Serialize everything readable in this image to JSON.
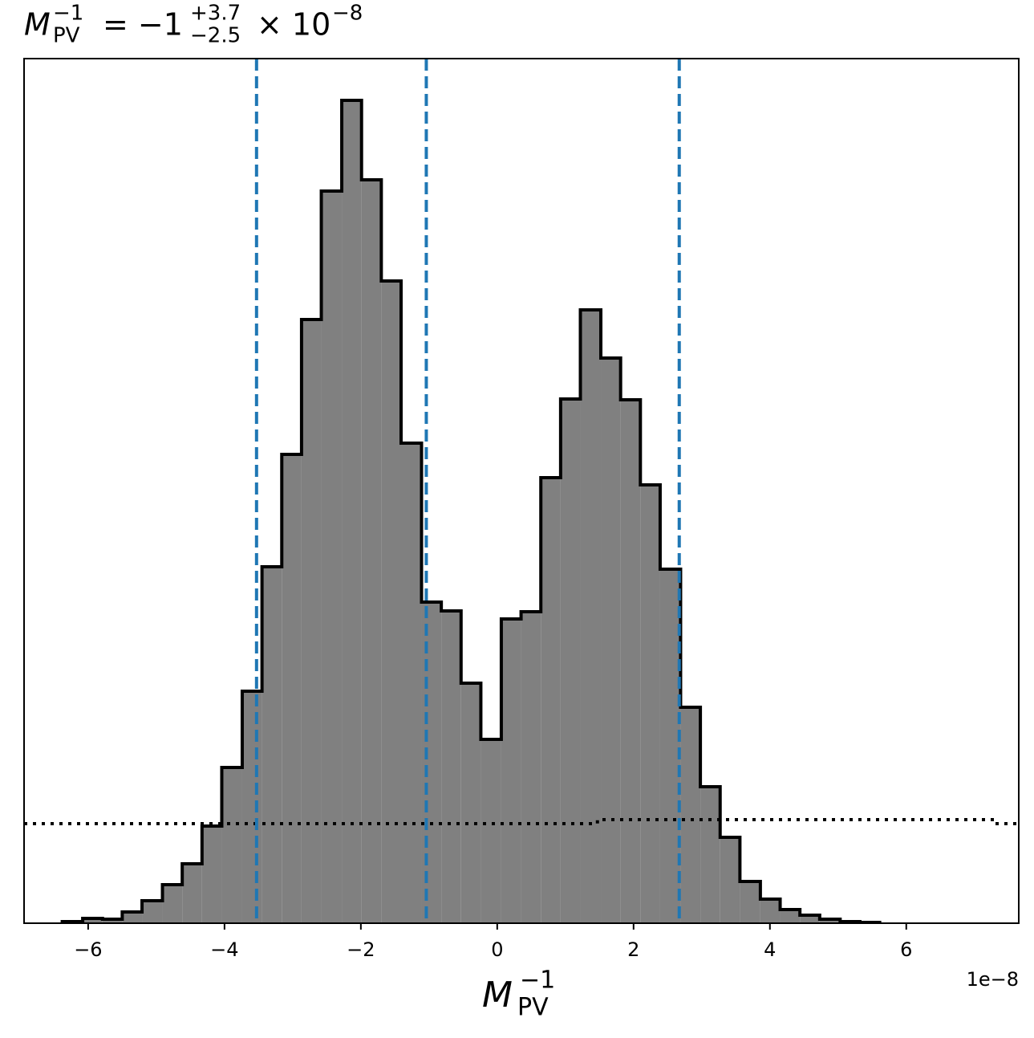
{
  "chart_data": {
    "type": "histogram",
    "title": {
      "base": "M",
      "sup": "−1",
      "sub": "PV",
      "eq": "= −1",
      "upper": "+3.7",
      "lower": "−2.5",
      "tail": "× 10",
      "tail_sup": "−8"
    },
    "xlabel": {
      "base": "M",
      "sup": "−1",
      "sub": "PV"
    },
    "x_offset_label": "1e−8",
    "bins": [
      -6.38,
      -6.08,
      -5.79,
      -5.5,
      -5.21,
      -4.91,
      -4.62,
      -4.33,
      -4.04,
      -3.74,
      -3.45,
      -3.16,
      -2.87,
      -2.58,
      -2.28,
      -1.99,
      -1.7,
      -1.41,
      -1.11,
      -0.82,
      -0.53,
      -0.24,
      0.06,
      0.35,
      0.64,
      0.93,
      1.22,
      1.52,
      1.81,
      2.1,
      2.39,
      2.69,
      2.98,
      3.27,
      3.56,
      3.86,
      4.15,
      4.44,
      4.73,
      5.03,
      5.32,
      5.61
    ],
    "values": [
      2,
      6,
      5,
      14,
      28,
      48,
      74,
      121,
      194,
      289,
      444,
      584,
      752,
      912,
      1025,
      926,
      800,
      598,
      400,
      389,
      299,
      229,
      379,
      388,
      555,
      653,
      764,
      704,
      652,
      546,
      441,
      269,
      170,
      107,
      52,
      30,
      17,
      10,
      5,
      2,
      1
    ],
    "color": "#808080",
    "edge_color": "#000000",
    "quantiles": [
      -3.53,
      -1.04,
      2.67
    ],
    "quantile_color": "#1f77b4",
    "prior_line": {
      "bins": [
        -6.94,
        1.47,
        7.29,
        7.65
      ],
      "values": [
        124,
        129,
        124
      ],
      "color": "#000000"
    },
    "xlim": [
      -6.94,
      7.65
    ],
    "ylim": [
      0,
      1077
    ],
    "xticks": [
      {
        "value": -6,
        "label": "−6"
      },
      {
        "value": -4,
        "label": "−4"
      },
      {
        "value": -2,
        "label": "−2"
      },
      0,
      2,
      4,
      6
    ]
  }
}
